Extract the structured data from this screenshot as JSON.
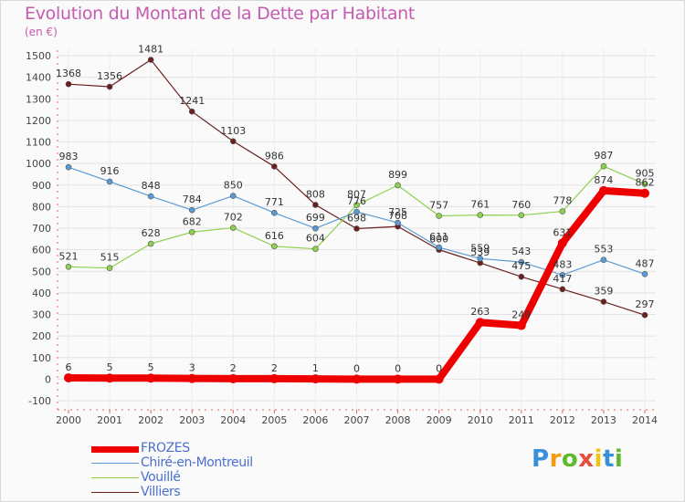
{
  "chart_data": {
    "type": "line",
    "title": "Evolution du Montant de la Dette par Habitant",
    "subtitle": "(en €)",
    "x": [
      "2000",
      "2001",
      "2002",
      "2003",
      "2004",
      "2005",
      "2006",
      "2007",
      "2008",
      "2009",
      "2010",
      "2011",
      "2012",
      "2013",
      "2014"
    ],
    "ylim": [
      -100,
      1500
    ],
    "yticks": [
      -100,
      0,
      100,
      200,
      300,
      400,
      500,
      600,
      700,
      800,
      900,
      1000,
      1100,
      1200,
      1300,
      1400,
      1500
    ],
    "grid": true,
    "legend_position": "bottom-left",
    "series": [
      {
        "name": "FROZES",
        "color": "#ee0000",
        "values": [
          6,
          5,
          5,
          3,
          2,
          2,
          1,
          0,
          0,
          0,
          263,
          249,
          631,
          874,
          862
        ]
      },
      {
        "name": "Chiré-en-Montreuil",
        "color": "#5b9bd5",
        "values": [
          983,
          916,
          848,
          784,
          850,
          771,
          699,
          776,
          725,
          611,
          559,
          543,
          483,
          553,
          487
        ]
      },
      {
        "name": "Vouillé",
        "color": "#8fd14f",
        "values": [
          521,
          515,
          628,
          682,
          702,
          616,
          604,
          807,
          899,
          757,
          761,
          760,
          778,
          987,
          905
        ]
      },
      {
        "name": "Villiers",
        "color": "#6b1f1f",
        "values": [
          1368,
          1356,
          1481,
          1241,
          1103,
          986,
          808,
          698,
          708,
          600,
          539,
          475,
          417,
          359,
          297
        ]
      }
    ]
  },
  "logo": {
    "letters": [
      "P",
      "r",
      "o",
      "x",
      "i",
      "t",
      "i"
    ],
    "colors": [
      "#3a8fd9",
      "#f39c12",
      "#5fb82d",
      "#e74c3c",
      "#f1c40f",
      "#3a8fd9",
      "#5fb82d"
    ]
  }
}
